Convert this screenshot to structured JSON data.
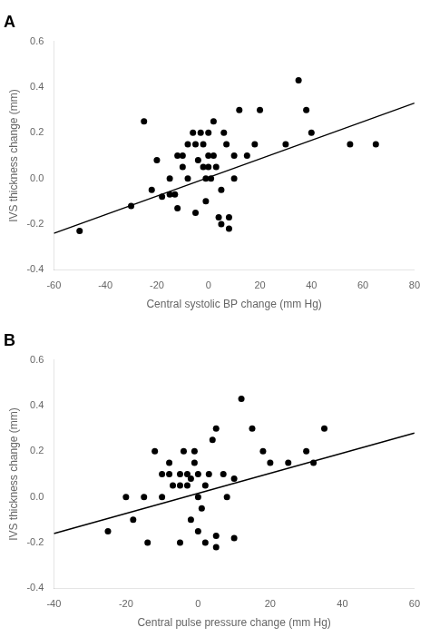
{
  "chart_data": [
    {
      "type": "scatter",
      "title": "A",
      "xlabel": "Central systolic BP change (mm Hg)",
      "ylabel": "IVS thickness change (mm)",
      "xlim": [
        -60,
        80
      ],
      "ylim": [
        -0.4,
        0.6
      ],
      "xticks": [
        -60,
        -40,
        -20,
        0,
        20,
        40,
        60,
        80
      ],
      "yticks": [
        -0.4,
        -0.2,
        {
          "value": 0,
          "label": "0.0"
        },
        0.2,
        0.4,
        0.6
      ],
      "grid": false,
      "series": [
        {
          "type": "scatter",
          "marker": "circle",
          "color": "black",
          "x": [
            -50,
            -30,
            -25,
            -22,
            -20,
            -18,
            -15,
            -15,
            -13,
            -12,
            -12,
            -10,
            -10,
            -8,
            -8,
            -6,
            -5,
            -5,
            -4,
            -3,
            -2,
            -2,
            -1,
            -1,
            0,
            0,
            0,
            1,
            2,
            2,
            3,
            4,
            5,
            5,
            6,
            7,
            8,
            8,
            10,
            10,
            12,
            15,
            18,
            20,
            30,
            35,
            38,
            40,
            55,
            65
          ],
          "values": [
            -0.23,
            -0.12,
            0.25,
            -0.05,
            0.08,
            -0.08,
            0.0,
            -0.07,
            -0.07,
            0.1,
            -0.13,
            0.1,
            0.05,
            0.15,
            0.0,
            0.2,
            0.15,
            -0.15,
            0.08,
            0.2,
            0.05,
            0.15,
            0.0,
            -0.1,
            0.2,
            0.1,
            0.05,
            0.0,
            0.1,
            0.25,
            0.05,
            -0.17,
            -0.05,
            -0.2,
            0.2,
            0.15,
            -0.17,
            -0.22,
            0.1,
            0.0,
            0.3,
            0.1,
            0.15,
            0.3,
            0.15,
            0.43,
            0.3,
            0.2,
            0.15,
            0.15
          ]
        },
        {
          "type": "line",
          "line_style": "solid",
          "color": "black",
          "x": [
            -60,
            80
          ],
          "values": [
            -0.24,
            0.33
          ]
        }
      ]
    },
    {
      "type": "scatter",
      "title": "B",
      "xlabel": "Central pulse pressure change (mm Hg)",
      "ylabel": "IVS thickness change (mm)",
      "xlim": [
        -40,
        60
      ],
      "ylim": [
        -0.4,
        0.6
      ],
      "xticks": [
        -40,
        -20,
        0,
        20,
        40,
        60
      ],
      "yticks": [
        -0.4,
        -0.2,
        {
          "value": 0,
          "label": "0.0"
        },
        0.2,
        0.4,
        0.6
      ],
      "grid": false,
      "series": [
        {
          "type": "scatter",
          "marker": "circle",
          "color": "black",
          "x": [
            -25,
            -20,
            -18,
            -15,
            -14,
            -12,
            -10,
            -10,
            -8,
            -8,
            -7,
            -5,
            -5,
            -5,
            -4,
            -3,
            -3,
            -2,
            -2,
            -1,
            -1,
            0,
            0,
            0,
            1,
            2,
            2,
            3,
            4,
            5,
            5,
            5,
            7,
            8,
            10,
            10,
            12,
            15,
            18,
            20,
            25,
            30,
            32,
            35
          ],
          "values": [
            -0.15,
            0.0,
            -0.1,
            0.0,
            -0.2,
            0.2,
            0.1,
            0.0,
            0.15,
            0.1,
            0.05,
            0.1,
            0.05,
            -0.2,
            0.2,
            0.1,
            0.05,
            0.08,
            -0.1,
            0.2,
            0.15,
            0.1,
            0.0,
            -0.15,
            -0.05,
            -0.2,
            0.05,
            0.1,
            0.25,
            -0.17,
            -0.22,
            0.3,
            0.1,
            0.0,
            0.08,
            -0.18,
            0.43,
            0.3,
            0.2,
            0.15,
            0.15,
            0.2,
            0.15,
            0.3
          ]
        },
        {
          "type": "line",
          "line_style": "solid",
          "color": "black",
          "x": [
            -40,
            60
          ],
          "values": [
            -0.16,
            0.28
          ]
        }
      ]
    }
  ]
}
